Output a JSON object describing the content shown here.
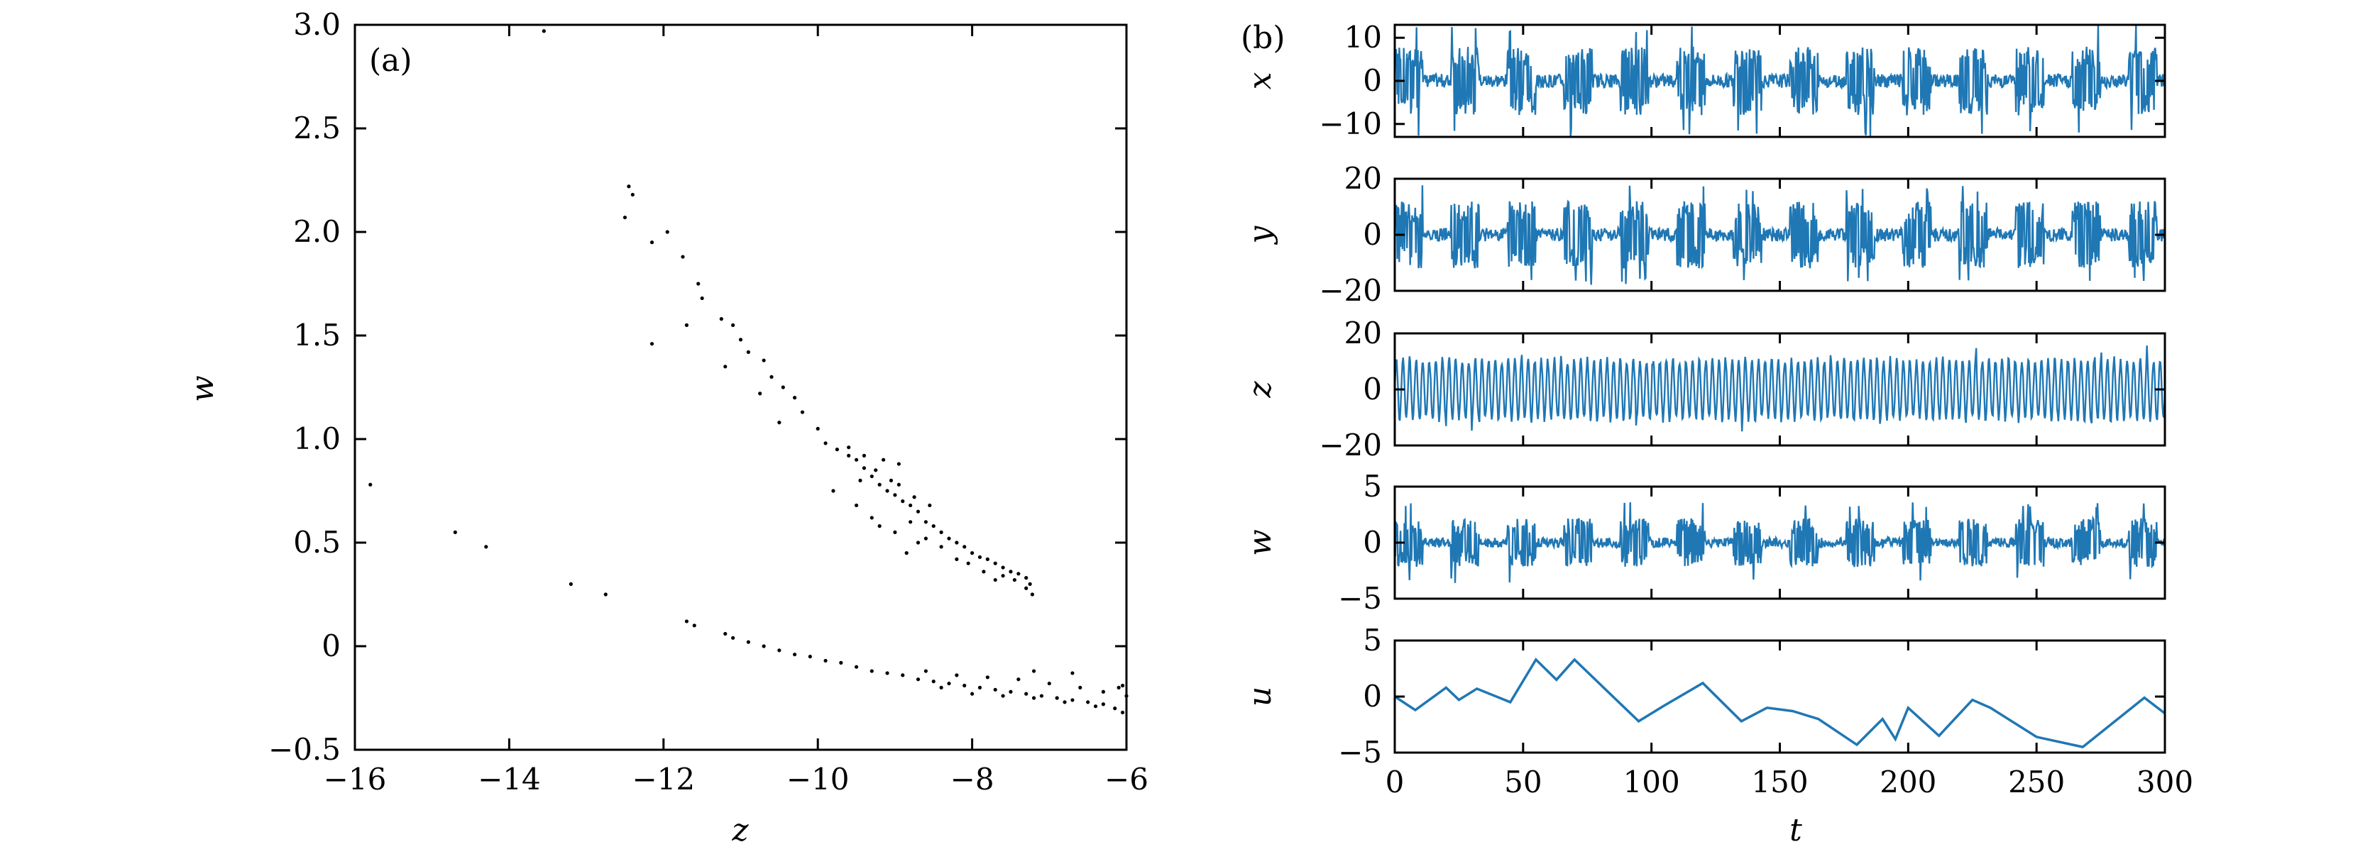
{
  "figure": {
    "panel_a_label": "(a)",
    "panel_b_label": "(b)"
  },
  "chart_data": [
    {
      "type": "scatter",
      "panel": "(a)",
      "xlabel": "z",
      "ylabel": "w",
      "xlim": [
        -16,
        -6
      ],
      "ylim": [
        -0.5,
        3.0
      ],
      "xticks": [
        -16,
        -14,
        -12,
        -10,
        -8,
        -6
      ],
      "yticks": [
        -0.5,
        0,
        0.5,
        1.0,
        1.5,
        2.0,
        2.5,
        3.0
      ],
      "xtick_labels": [
        "−16",
        "−14",
        "−12",
        "−10",
        "−8",
        "−6"
      ],
      "ytick_labels": [
        "−0.5",
        "0",
        "0.5",
        "1.0",
        "1.5",
        "2.0",
        "2.5",
        "3.0"
      ],
      "marker_color": "#000000",
      "points": [
        [
          -13.55,
          2.97
        ],
        [
          -15.8,
          0.78
        ],
        [
          -14.7,
          0.55
        ],
        [
          -14.3,
          0.48
        ],
        [
          -13.2,
          0.3
        ],
        [
          -12.75,
          0.25
        ],
        [
          -12.45,
          2.22
        ],
        [
          -12.4,
          2.18
        ],
        [
          -12.5,
          2.07
        ],
        [
          -12.15,
          1.95
        ],
        [
          -11.95,
          2.0
        ],
        [
          -12.15,
          1.46
        ],
        [
          -11.75,
          1.88
        ],
        [
          -11.55,
          1.75
        ],
        [
          -11.5,
          1.68
        ],
        [
          -11.7,
          1.55
        ],
        [
          -11.25,
          1.58
        ],
        [
          -11.1,
          1.55
        ],
        [
          -11.0,
          1.48
        ],
        [
          -10.9,
          1.42
        ],
        [
          -10.7,
          1.38
        ],
        [
          -10.6,
          1.3
        ],
        [
          -10.45,
          1.25
        ],
        [
          -10.3,
          1.2
        ],
        [
          -11.2,
          1.35
        ],
        [
          -10.75,
          1.22
        ],
        [
          -10.5,
          1.08
        ],
        [
          -10.2,
          1.13
        ],
        [
          -10.0,
          1.05
        ],
        [
          -9.9,
          0.98
        ],
        [
          -9.75,
          0.95
        ],
        [
          -9.6,
          0.92
        ],
        [
          -9.5,
          0.9
        ],
        [
          -9.4,
          0.86
        ],
        [
          -9.3,
          0.82
        ],
        [
          -9.2,
          0.78
        ],
        [
          -9.1,
          0.75
        ],
        [
          -9.0,
          0.73
        ],
        [
          -8.9,
          0.7
        ],
        [
          -8.8,
          0.68
        ],
        [
          -8.7,
          0.65
        ],
        [
          -8.6,
          0.6
        ],
        [
          -8.5,
          0.58
        ],
        [
          -8.4,
          0.55
        ],
        [
          -8.3,
          0.52
        ],
        [
          -8.2,
          0.5
        ],
        [
          -8.1,
          0.48
        ],
        [
          -8.0,
          0.45
        ],
        [
          -7.9,
          0.43
        ],
        [
          -7.8,
          0.42
        ],
        [
          -7.7,
          0.4
        ],
        [
          -7.6,
          0.38
        ],
        [
          -7.5,
          0.36
        ],
        [
          -7.4,
          0.35
        ],
        [
          -7.3,
          0.33
        ],
        [
          -7.25,
          0.3
        ],
        [
          -7.22,
          0.25
        ],
        [
          -7.3,
          0.28
        ],
        [
          -7.45,
          0.32
        ],
        [
          -7.6,
          0.34
        ],
        [
          -9.8,
          0.75
        ],
        [
          -9.5,
          0.68
        ],
        [
          -9.3,
          0.62
        ],
        [
          -9.2,
          0.58
        ],
        [
          -9.0,
          0.55
        ],
        [
          -8.8,
          0.6
        ],
        [
          -8.6,
          0.52
        ],
        [
          -9.45,
          0.8
        ],
        [
          -9.25,
          0.85
        ],
        [
          -9.05,
          0.8
        ],
        [
          -8.95,
          0.88
        ],
        [
          -8.85,
          0.45
        ],
        [
          -8.7,
          0.5
        ],
        [
          -8.4,
          0.48
        ],
        [
          -8.2,
          0.42
        ],
        [
          -8.05,
          0.4
        ],
        [
          -7.85,
          0.36
        ],
        [
          -7.7,
          0.32
        ],
        [
          -9.6,
          0.96
        ],
        [
          -9.4,
          0.92
        ],
        [
          -9.15,
          0.9
        ],
        [
          -8.95,
          0.78
        ],
        [
          -8.75,
          0.72
        ],
        [
          -8.55,
          0.68
        ],
        [
          -11.7,
          0.12
        ],
        [
          -11.6,
          0.1
        ],
        [
          -11.2,
          0.06
        ],
        [
          -11.1,
          0.04
        ],
        [
          -10.9,
          0.02
        ],
        [
          -10.7,
          0.0
        ],
        [
          -10.5,
          -0.02
        ],
        [
          -10.3,
          -0.04
        ],
        [
          -10.1,
          -0.05
        ],
        [
          -9.9,
          -0.07
        ],
        [
          -9.7,
          -0.08
        ],
        [
          -9.5,
          -0.1
        ],
        [
          -9.3,
          -0.12
        ],
        [
          -9.1,
          -0.13
        ],
        [
          -8.9,
          -0.14
        ],
        [
          -8.7,
          -0.16
        ],
        [
          -8.5,
          -0.17
        ],
        [
          -8.3,
          -0.18
        ],
        [
          -8.1,
          -0.19
        ],
        [
          -7.9,
          -0.2
        ],
        [
          -7.7,
          -0.21
        ],
        [
          -7.5,
          -0.22
        ],
        [
          -7.3,
          -0.23
        ],
        [
          -7.1,
          -0.24
        ],
        [
          -6.9,
          -0.25
        ],
        [
          -6.7,
          -0.26
        ],
        [
          -6.5,
          -0.27
        ],
        [
          -6.3,
          -0.28
        ],
        [
          -6.15,
          -0.3
        ],
        [
          -6.05,
          -0.32
        ],
        [
          -8.6,
          -0.12
        ],
        [
          -8.2,
          -0.14
        ],
        [
          -7.8,
          -0.15
        ],
        [
          -7.4,
          -0.16
        ],
        [
          -7.0,
          -0.18
        ],
        [
          -6.6,
          -0.2
        ],
        [
          -6.3,
          -0.22
        ],
        [
          -6.1,
          -0.2
        ],
        [
          -6.0,
          -0.24
        ],
        [
          -8.4,
          -0.2
        ],
        [
          -8.0,
          -0.23
        ],
        [
          -7.6,
          -0.24
        ],
        [
          -7.2,
          -0.25
        ],
        [
          -6.8,
          -0.27
        ],
        [
          -6.4,
          -0.29
        ],
        [
          -7.2,
          -0.12
        ],
        [
          -6.7,
          -0.13
        ],
        [
          -6.05,
          -0.19
        ]
      ]
    },
    {
      "type": "line",
      "panel": "(b)",
      "xlabel": "t",
      "xlim": [
        0,
        300
      ],
      "xticks": [
        0,
        50,
        100,
        150,
        200,
        250,
        300
      ],
      "xtick_labels": [
        "0",
        "50",
        "100",
        "150",
        "200",
        "250",
        "300"
      ],
      "line_color": "#1f77b4",
      "series": [
        {
          "name": "x",
          "ylabel": "x",
          "ylim": [
            -13,
            13
          ],
          "yticks": [
            -10,
            0,
            10
          ],
          "ytick_labels": [
            "−10",
            "0",
            "10"
          ]
        },
        {
          "name": "y",
          "ylabel": "y",
          "ylim": [
            -20,
            20
          ],
          "yticks": [
            -20,
            0,
            20
          ],
          "ytick_labels": [
            "−20",
            "0",
            "20"
          ]
        },
        {
          "name": "z",
          "ylabel": "z",
          "ylim": [
            -20,
            20
          ],
          "yticks": [
            -20,
            0,
            20
          ],
          "ytick_labels": [
            "−20",
            "0",
            "20"
          ]
        },
        {
          "name": "w",
          "ylabel": "w",
          "ylim": [
            -5,
            5
          ],
          "yticks": [
            -5,
            0,
            5
          ],
          "ytick_labels": [
            "−5",
            "0",
            "5"
          ]
        },
        {
          "name": "u",
          "ylabel": "u",
          "ylim": [
            -5,
            5
          ],
          "yticks": [
            -5,
            0,
            5
          ],
          "ytick_labels": [
            "−5",
            "0",
            "5"
          ],
          "t": [
            0,
            8,
            20,
            25,
            32,
            45,
            55,
            63,
            70,
            95,
            105,
            120,
            135,
            145,
            155,
            165,
            180,
            190,
            195,
            200,
            212,
            225,
            232,
            250,
            268,
            292,
            300
          ],
          "values": [
            0,
            -1.2,
            0.8,
            -0.3,
            0.7,
            -0.5,
            3.3,
            1.5,
            3.3,
            -2.2,
            -0.8,
            1.2,
            -2.2,
            -1.0,
            -1.3,
            -2.0,
            -4.3,
            -2.0,
            -3.8,
            -1.0,
            -3.5,
            -0.3,
            -1.0,
            -3.6,
            -4.5,
            -0.1,
            -1.5
          ]
        }
      ]
    }
  ]
}
